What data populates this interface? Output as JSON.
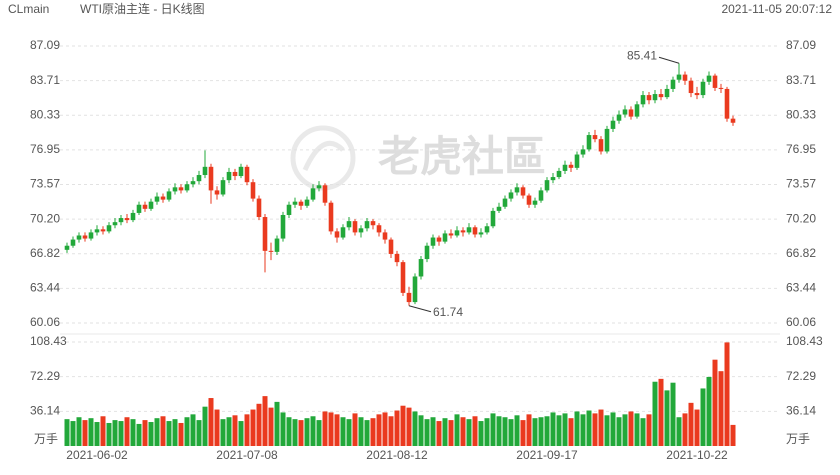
{
  "chart_data": {
    "type": "candlestick",
    "symbol": "CLmain",
    "title": "WTI原油主连 - 日K线图",
    "timestamp": "2021-11-05 20:07:12",
    "watermark": "老虎社區",
    "up_color": "#22a83a",
    "down_color": "#ea3a1f",
    "categories": [
      null,
      null,
      null,
      null,
      null,
      "2021-06-02",
      null,
      null,
      null,
      null,
      null,
      null,
      null,
      null,
      null,
      null,
      null,
      null,
      null,
      null,
      null,
      null,
      null,
      null,
      null,
      null,
      null,
      null,
      null,
      null,
      "2021-07-08",
      null,
      null,
      null,
      null,
      null,
      null,
      null,
      null,
      null,
      null,
      null,
      null,
      null,
      null,
      null,
      null,
      null,
      null,
      null,
      null,
      null,
      null,
      null,
      null,
      "2021-08-12",
      null,
      null,
      null,
      null,
      null,
      null,
      null,
      null,
      null,
      null,
      null,
      null,
      null,
      null,
      null,
      null,
      null,
      null,
      null,
      null,
      null,
      null,
      null,
      null,
      "2021-09-17",
      null,
      null,
      null,
      null,
      null,
      null,
      null,
      null,
      null,
      null,
      null,
      null,
      null,
      null,
      null,
      null,
      null,
      null,
      null,
      null,
      null,
      null,
      null,
      null,
      "2021-10-22",
      null,
      null,
      null,
      null,
      null,
      null
    ],
    "ohlc": [
      [
        67.2,
        67.9,
        66.9,
        67.6
      ],
      [
        67.6,
        68.5,
        67.4,
        68.2
      ],
      [
        68.2,
        68.9,
        67.9,
        68.6
      ],
      [
        68.6,
        68.9,
        68.0,
        68.3
      ],
      [
        68.3,
        69.2,
        68.1,
        68.9
      ],
      [
        68.9,
        69.6,
        68.6,
        69.2
      ],
      [
        69.2,
        69.5,
        68.7,
        69.0
      ],
      [
        69.0,
        69.9,
        68.8,
        69.6
      ],
      [
        69.6,
        70.3,
        69.3,
        69.9
      ],
      [
        69.9,
        70.6,
        69.6,
        70.3
      ],
      [
        70.3,
        70.7,
        69.8,
        70.1
      ],
      [
        70.1,
        71.1,
        69.9,
        70.8
      ],
      [
        70.8,
        71.9,
        70.6,
        71.6
      ],
      [
        71.6,
        71.9,
        70.9,
        71.2
      ],
      [
        71.2,
        72.2,
        71.0,
        71.9
      ],
      [
        71.9,
        72.8,
        71.6,
        72.4
      ],
      [
        72.4,
        72.7,
        71.8,
        72.1
      ],
      [
        72.1,
        73.2,
        71.9,
        72.9
      ],
      [
        72.9,
        73.7,
        72.6,
        73.3
      ],
      [
        73.3,
        73.6,
        72.7,
        73.0
      ],
      [
        73.0,
        73.9,
        72.8,
        73.6
      ],
      [
        73.6,
        74.3,
        73.3,
        73.9
      ],
      [
        73.9,
        74.9,
        73.6,
        74.5
      ],
      [
        74.5,
        76.9,
        74.2,
        75.3
      ],
      [
        75.3,
        75.6,
        71.7,
        73.0
      ],
      [
        73.0,
        73.4,
        72.1,
        72.6
      ],
      [
        72.6,
        74.3,
        72.4,
        74.0
      ],
      [
        74.0,
        75.2,
        73.7,
        74.8
      ],
      [
        74.8,
        75.1,
        74.0,
        74.4
      ],
      [
        74.4,
        75.6,
        74.2,
        75.3
      ],
      [
        75.3,
        75.5,
        73.5,
        73.8
      ],
      [
        73.8,
        74.1,
        71.9,
        72.2
      ],
      [
        72.2,
        72.5,
        70.1,
        70.4
      ],
      [
        70.4,
        70.7,
        65.0,
        67.1
      ],
      [
        67.1,
        67.9,
        66.2,
        67.0
      ],
      [
        67.0,
        68.6,
        66.7,
        68.3
      ],
      [
        68.3,
        70.9,
        68.0,
        70.6
      ],
      [
        70.6,
        71.9,
        70.3,
        71.6
      ],
      [
        71.6,
        72.3,
        71.3,
        71.9
      ],
      [
        71.9,
        72.1,
        71.1,
        71.5
      ],
      [
        71.5,
        72.4,
        71.3,
        72.1
      ],
      [
        72.1,
        73.6,
        71.9,
        73.2
      ],
      [
        73.2,
        73.9,
        72.9,
        73.5
      ],
      [
        73.5,
        73.7,
        71.5,
        71.8
      ],
      [
        71.8,
        72.0,
        68.7,
        69.0
      ],
      [
        69.0,
        69.3,
        67.9,
        68.4
      ],
      [
        68.4,
        69.7,
        68.2,
        69.4
      ],
      [
        69.4,
        70.4,
        69.1,
        70.0
      ],
      [
        70.0,
        70.2,
        68.6,
        68.9
      ],
      [
        68.9,
        69.6,
        68.4,
        69.3
      ],
      [
        69.3,
        70.3,
        69.0,
        70.0
      ],
      [
        70.0,
        70.2,
        69.2,
        69.6
      ],
      [
        69.6,
        69.8,
        68.5,
        68.9
      ],
      [
        68.9,
        69.2,
        67.8,
        68.2
      ],
      [
        68.2,
        68.4,
        66.4,
        66.8
      ],
      [
        66.8,
        67.1,
        65.6,
        66.0
      ],
      [
        66.0,
        66.2,
        62.7,
        63.0
      ],
      [
        63.0,
        63.6,
        61.74,
        62.1
      ],
      [
        62.1,
        64.9,
        61.9,
        64.6
      ],
      [
        64.6,
        66.6,
        64.3,
        66.3
      ],
      [
        66.3,
        67.9,
        66.0,
        67.6
      ],
      [
        67.6,
        68.7,
        67.3,
        68.4
      ],
      [
        68.4,
        68.6,
        67.6,
        68.0
      ],
      [
        68.0,
        69.1,
        67.8,
        68.8
      ],
      [
        68.8,
        69.2,
        68.3,
        68.6
      ],
      [
        68.6,
        69.5,
        68.4,
        69.1
      ],
      [
        69.1,
        69.4,
        68.5,
        68.9
      ],
      [
        68.9,
        69.8,
        68.7,
        69.4
      ],
      [
        69.4,
        69.6,
        68.4,
        68.7
      ],
      [
        68.7,
        69.3,
        68.4,
        68.9
      ],
      [
        68.9,
        69.8,
        68.7,
        69.5
      ],
      [
        69.5,
        71.3,
        69.3,
        71.0
      ],
      [
        71.0,
        71.8,
        70.8,
        71.4
      ],
      [
        71.4,
        72.5,
        71.2,
        72.2
      ],
      [
        72.2,
        73.1,
        71.9,
        72.8
      ],
      [
        72.8,
        73.7,
        72.5,
        73.3
      ],
      [
        73.3,
        73.5,
        72.2,
        72.5
      ],
      [
        72.5,
        72.7,
        71.3,
        71.6
      ],
      [
        71.6,
        72.3,
        71.3,
        72.0
      ],
      [
        72.0,
        73.3,
        71.8,
        73.0
      ],
      [
        73.0,
        74.3,
        72.8,
        74.0
      ],
      [
        74.0,
        74.7,
        73.7,
        74.3
      ],
      [
        74.3,
        75.2,
        74.1,
        74.9
      ],
      [
        74.9,
        75.9,
        74.6,
        75.5
      ],
      [
        75.5,
        75.8,
        74.8,
        75.2
      ],
      [
        75.2,
        76.8,
        75.0,
        76.5
      ],
      [
        76.5,
        77.4,
        76.2,
        77.0
      ],
      [
        77.0,
        78.7,
        76.8,
        78.4
      ],
      [
        78.4,
        78.9,
        77.7,
        78.0
      ],
      [
        78.0,
        78.3,
        76.5,
        76.8
      ],
      [
        76.8,
        79.3,
        76.6,
        79.0
      ],
      [
        79.0,
        80.2,
        78.7,
        79.8
      ],
      [
        79.8,
        80.8,
        79.5,
        80.4
      ],
      [
        80.4,
        81.3,
        80.1,
        80.9
      ],
      [
        80.9,
        81.2,
        79.9,
        80.2
      ],
      [
        80.2,
        81.7,
        80.0,
        81.4
      ],
      [
        81.4,
        82.7,
        81.1,
        82.3
      ],
      [
        82.3,
        82.6,
        81.4,
        81.8
      ],
      [
        81.8,
        82.8,
        81.5,
        82.4
      ],
      [
        82.4,
        82.9,
        81.8,
        82.1
      ],
      [
        82.1,
        83.3,
        81.9,
        82.9
      ],
      [
        82.9,
        84.1,
        82.6,
        83.8
      ],
      [
        83.8,
        85.41,
        83.5,
        84.3
      ],
      [
        84.3,
        84.6,
        83.3,
        83.7
      ],
      [
        83.7,
        84.0,
        82.1,
        82.5
      ],
      [
        82.5,
        83.1,
        81.9,
        82.3
      ],
      [
        82.3,
        83.9,
        82.0,
        83.6
      ],
      [
        83.6,
        84.6,
        83.3,
        84.2
      ],
      [
        84.2,
        84.4,
        82.7,
        83.0
      ],
      [
        83.0,
        83.4,
        82.5,
        82.9
      ],
      [
        82.9,
        83.1,
        79.7,
        80.0
      ],
      [
        80.0,
        80.3,
        79.3,
        79.6
      ]
    ],
    "volume": [
      28,
      26,
      30,
      27,
      29,
      25,
      31,
      24,
      27,
      26,
      30,
      28,
      23,
      27,
      25,
      29,
      31,
      26,
      28,
      24,
      30,
      33,
      27,
      41,
      50,
      38,
      28,
      30,
      32,
      26,
      33,
      38,
      44,
      52,
      40,
      46,
      35,
      30,
      28,
      27,
      29,
      31,
      27,
      36,
      35,
      33,
      30,
      28,
      34,
      30,
      27,
      29,
      33,
      35,
      31,
      37,
      42,
      40,
      36,
      32,
      28,
      30,
      26,
      29,
      27,
      33,
      30,
      28,
      31,
      26,
      29,
      34,
      31,
      30,
      28,
      32,
      27,
      33,
      29,
      30,
      31,
      35,
      32,
      34,
      29,
      36,
      33,
      37,
      34,
      38,
      32,
      35,
      30,
      33,
      36,
      34,
      29,
      33,
      67,
      70,
      58,
      66,
      30,
      34,
      45,
      38,
      60,
      72,
      90,
      78,
      108,
      22
    ],
    "high_marker": 85.41,
    "low_marker": 61.74,
    "ylim": [
      60.06,
      87.09
    ],
    "yticks": [
      {
        "value": 60.06,
        "label": "60.06"
      },
      63.44,
      66.82,
      {
        "value": 70.2,
        "label": "70.20"
      },
      73.57,
      76.95,
      80.33,
      83.71,
      87.09
    ],
    "volume_ylim": [
      0,
      108.43
    ],
    "volume_yticks": [
      36.14,
      72.29,
      108.43
    ],
    "volume_unit": "万手",
    "grid": true
  }
}
